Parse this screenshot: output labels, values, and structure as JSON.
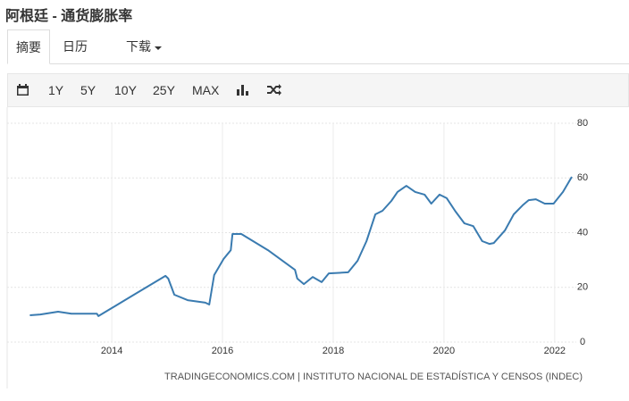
{
  "header": {
    "title": "阿根廷 - 通货膨胀率"
  },
  "tabs": [
    "摘要",
    "日历",
    "下载"
  ],
  "toolbar": [
    "1Y",
    "5Y",
    "10Y",
    "25Y",
    "MAX"
  ],
  "chart_data": {
    "type": "line",
    "source": "TRADINGECONOMICS.COM | INSTITUTO NACIONAL DE ESTADÍSTICA Y CENSOS (INDEC)",
    "x": [
      2012.52,
      2012.71,
      2013.03,
      2013.27,
      2013.44,
      2013.73,
      2013.76,
      2014.4,
      2014.97,
      2015.02,
      2015.13,
      2015.37,
      2015.69,
      2015.76,
      2015.85,
      2016.02,
      2016.15,
      2016.18,
      2016.34,
      2016.82,
      2017.31,
      2017.35,
      2017.47,
      2017.63,
      2017.79,
      2017.92,
      2018.27,
      2018.44,
      2018.6,
      2018.76,
      2018.89,
      2019.05,
      2019.16,
      2019.32,
      2019.48,
      2019.65,
      2019.77,
      2019.92,
      2020.05,
      2020.21,
      2020.37,
      2020.53,
      2020.69,
      2020.82,
      2020.9,
      2021.1,
      2021.26,
      2021.42,
      2021.53,
      2021.66,
      2021.82,
      2021.98,
      2022.15,
      2022.31
    ],
    "series": [
      {
        "color": "#3a7bb0",
        "values": [
          9.8,
          10.1,
          11.1,
          10.4,
          10.4,
          10.4,
          9.5,
          17.3,
          24.2,
          23.2,
          17.3,
          15.3,
          14.4,
          13.7,
          24.5,
          30.4,
          33.6,
          39.5,
          39.5,
          33.6,
          26.4,
          23.2,
          21.2,
          23.8,
          21.9,
          25.1,
          25.5,
          29.7,
          36.9,
          46.7,
          48.0,
          51.6,
          54.9,
          57.1,
          54.9,
          53.9,
          50.6,
          53.9,
          52.6,
          47.7,
          43.4,
          42.4,
          36.9,
          35.9,
          36.2,
          40.8,
          46.7,
          50.0,
          51.9,
          52.2,
          50.6,
          50.6,
          54.9,
          60.4
        ]
      }
    ],
    "xlim": [
      2012.11,
      2022.39
    ],
    "xticks": [
      2014,
      2016,
      2018,
      2020,
      2022
    ],
    "ylim": [
      0,
      80
    ],
    "yticks": [
      0,
      20,
      40,
      60,
      80
    ],
    "grid": true
  }
}
